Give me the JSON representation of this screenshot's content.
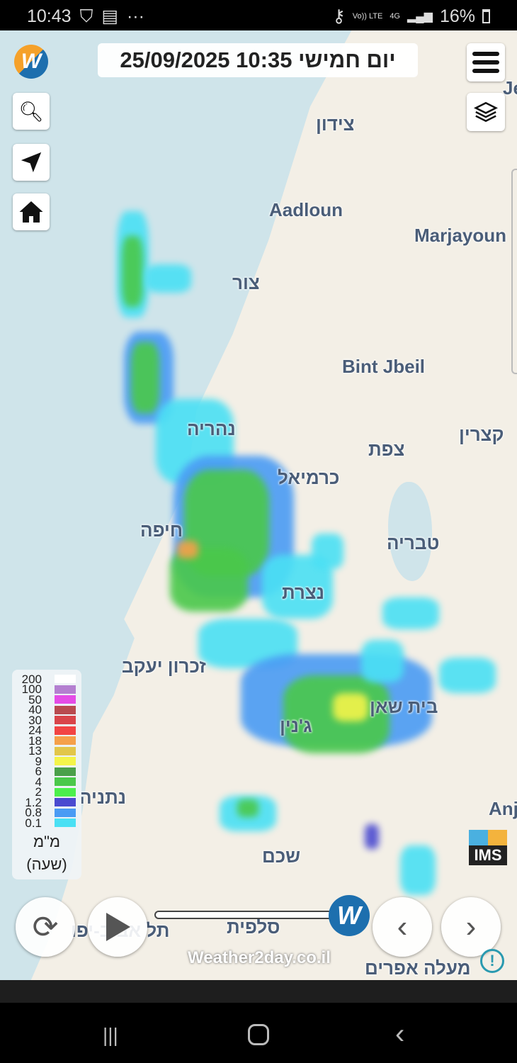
{
  "status_bar": {
    "time": "10:43",
    "battery": "16%",
    "network": "4G",
    "volte": "Vo)) LTE"
  },
  "header": {
    "datetime": "25/09/2025 10:35 יום חמישי"
  },
  "toolbar": {
    "search_icon": "search-icon",
    "locate_icon": "navigation-arrow-icon",
    "home_icon": "home-icon",
    "menu_icon": "hamburger-menu-icon",
    "layers_icon": "layers-icon"
  },
  "places": [
    "צידון",
    "Aadloun",
    "Marjayoun",
    "צור",
    "Bint Jbeil",
    "נהריה",
    "צפת",
    "קצרין",
    "כרמיאל",
    "חיפה",
    "טבריה",
    "נצרת",
    "זכרון יעקב",
    "בית שאן",
    "ג'נין",
    "נתניה",
    "Anj",
    "שכם",
    "סלפית",
    "תל אביב-יפו",
    "מעלה אפרים",
    "Je"
  ],
  "legend": {
    "items": [
      {
        "label": "200",
        "color": "#ffffff"
      },
      {
        "label": "100",
        "color": "#b47fd0"
      },
      {
        "label": "50",
        "color": "#e44ce6"
      },
      {
        "label": "40",
        "color": "#b84a4f"
      },
      {
        "label": "30",
        "color": "#d9444a"
      },
      {
        "label": "24",
        "color": "#f24444"
      },
      {
        "label": "18",
        "color": "#f5a04a"
      },
      {
        "label": "13",
        "color": "#e2c64a"
      },
      {
        "label": "9",
        "color": "#f4f44a"
      },
      {
        "label": "6",
        "color": "#4aa04a"
      },
      {
        "label": "4",
        "color": "#4ac84a"
      },
      {
        "label": "2",
        "color": "#4cef4c"
      },
      {
        "label": "1.2",
        "color": "#4a4ad0"
      },
      {
        "label": "0.8",
        "color": "#4a9bf4"
      },
      {
        "label": "0.1",
        "color": "#4ae0f4"
      }
    ],
    "unit": "מ\"מ",
    "period": "(שעה)"
  },
  "controls": {
    "refresh_icon": "refresh-icon",
    "play_icon": "play-icon",
    "prev_icon": "chevron-left-icon",
    "next_icon": "chevron-right-icon",
    "info_icon": "info-icon",
    "timeline_progress": 1.0
  },
  "branding": {
    "watermark": "Weather2day.co.il",
    "ims": "IMS"
  }
}
